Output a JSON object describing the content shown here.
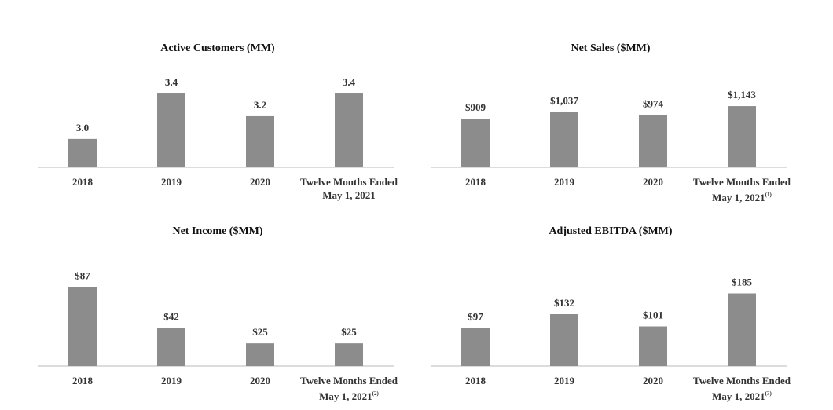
{
  "chart_data": [
    {
      "type": "bar",
      "title": "Active Customers (MM)",
      "categories": [
        "2018",
        "2019",
        "2020",
        "Twelve Months Ended May 1, 2021"
      ],
      "values": [
        3.0,
        3.4,
        3.2,
        3.4
      ],
      "value_labels": [
        "3.0",
        "3.4",
        "3.2",
        "3.4"
      ],
      "color": "#8c8c8c",
      "ylim": [
        2.75,
        3.58
      ]
    },
    {
      "type": "bar",
      "title": "Net Sales ($MM)",
      "categories": [
        "2018",
        "2019",
        "2020",
        "Twelve Months Ended May 1, 2021"
      ],
      "category_note": "(1)",
      "values": [
        909,
        1037,
        974,
        1143
      ],
      "value_labels": [
        "$909",
        "$1,037",
        "$974",
        "$1,143"
      ],
      "color": "#8c8c8c",
      "ylim": [
        0,
        1760
      ]
    },
    {
      "type": "bar",
      "title": "Net Income ($MM)",
      "categories": [
        "2018",
        "2019",
        "2020",
        "Twelve Months Ended May 1, 2021"
      ],
      "category_note": "(2)",
      "values": [
        87,
        42,
        25,
        25
      ],
      "value_labels": [
        "$87",
        "$42",
        "$25",
        "$25"
      ],
      "color": "#8c8c8c",
      "ylim": [
        0,
        104
      ]
    },
    {
      "type": "bar",
      "title": "Adjusted EBITDA ($MM)",
      "categories": [
        "2018",
        "2019",
        "2020",
        "Twelve Months Ended May 1, 2021"
      ],
      "category_note": "(3)",
      "values": [
        97,
        132,
        101,
        185
      ],
      "value_labels": [
        "$97",
        "$132",
        "$101",
        "$185"
      ],
      "color": "#8c8c8c",
      "ylim": [
        0,
        240
      ]
    }
  ]
}
